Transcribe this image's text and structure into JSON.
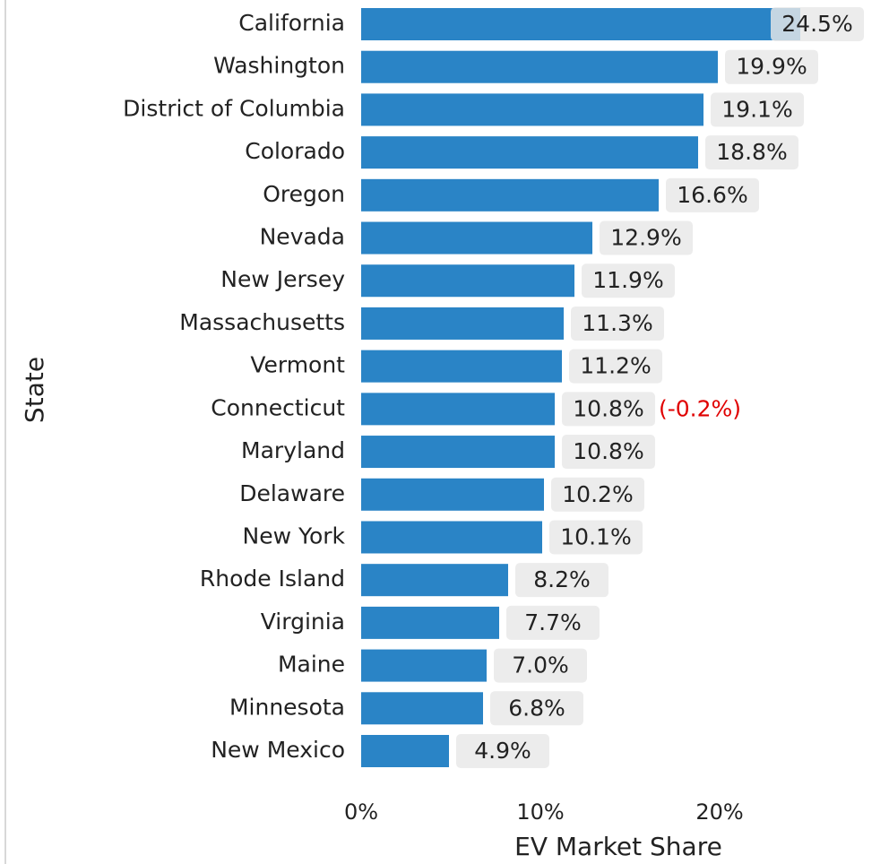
{
  "chart_data": {
    "type": "barh",
    "x_label": "EV Market Share",
    "y_label": "State",
    "categories": [
      "California",
      "Washington",
      "District of Columbia",
      "Colorado",
      "Oregon",
      "Nevada",
      "New Jersey",
      "Massachusetts",
      "Vermont",
      "Connecticut",
      "Maryland",
      "Delaware",
      "New York",
      "Rhode Island",
      "Virginia",
      "Maine",
      "Minnesota",
      "New Mexico"
    ],
    "values": [
      24.5,
      19.9,
      19.1,
      18.8,
      16.6,
      12.9,
      11.9,
      11.3,
      11.2,
      10.8,
      10.8,
      10.2,
      10.1,
      8.2,
      7.7,
      7.0,
      6.8,
      4.9
    ],
    "value_labels": [
      "24.5%",
      "19.9%",
      "19.1%",
      "18.8%",
      "16.6%",
      "12.9%",
      "11.9%",
      "11.3%",
      "11.2%",
      "10.8%",
      "10.8%",
      "10.2%",
      "10.1%",
      "8.2%",
      "7.7%",
      "7.0%",
      "6.8%",
      "4.9%"
    ],
    "color": "#2a84c6",
    "xlim": [
      0,
      29.5
    ],
    "xticks": [
      {
        "value": 0,
        "label": "0%"
      },
      {
        "value": 10,
        "label": "10%"
      },
      {
        "value": 20,
        "label": "20%"
      }
    ],
    "annotations": [
      {
        "text": "(-0.2%)",
        "category": "Connecticut",
        "color": "#e00000"
      }
    ]
  }
}
